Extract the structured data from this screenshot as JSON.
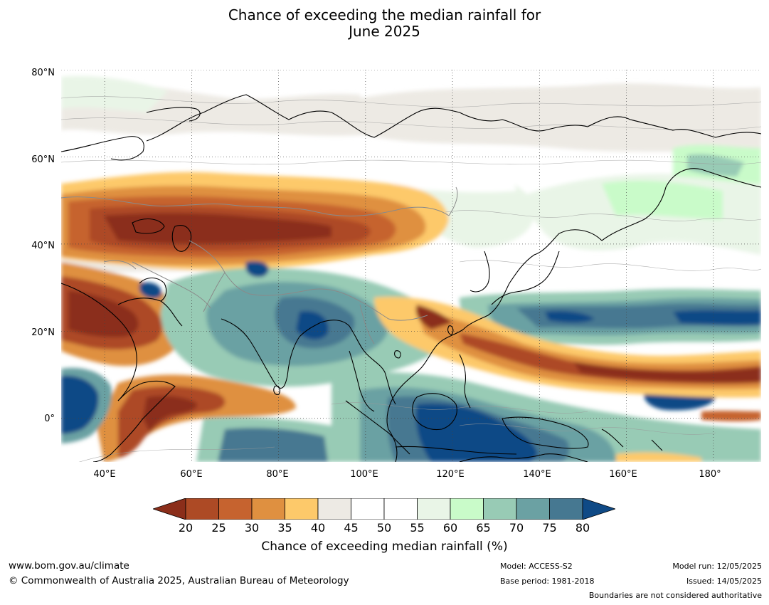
{
  "title": {
    "line1": "Chance of exceeding the median rainfall for",
    "line2": "June 2025"
  },
  "map": {
    "lat_labels": [
      "80°N",
      "60°N",
      "40°N",
      "20°N",
      "0°"
    ],
    "lat_values": [
      80,
      60,
      40,
      20,
      0
    ],
    "lon_labels": [
      "40°E",
      "60°E",
      "80°E",
      "100°E",
      "120°E",
      "140°E",
      "160°E",
      "180°"
    ],
    "lon_values": [
      40,
      60,
      80,
      100,
      120,
      140,
      160,
      180
    ],
    "extent": {
      "lon_min": 30,
      "lon_max": 191,
      "lat_min": -10,
      "lat_max": 80
    },
    "grid": "dotted",
    "background": "#ffffff"
  },
  "colorbar": {
    "ticks": [
      "20",
      "25",
      "30",
      "35",
      "40",
      "45",
      "50",
      "55",
      "60",
      "65",
      "70",
      "75",
      "80"
    ],
    "colors": [
      "#8b2e1a",
      "#ad4a25",
      "#c6632f",
      "#df9040",
      "#fdc96a",
      "#edeae4",
      "#ffffff",
      "#ffffff",
      "#e9f5e7",
      "#c9fbc9",
      "#98cbb5",
      "#6ba1a3",
      "#467891",
      "#0f4a86"
    ],
    "label": "Chance of exceeding median rainfall (%)"
  },
  "footer": {
    "website": "www.bom.gov.au/climate",
    "copyright": "© Commonwealth of Australia 2025, Australian Bureau of Meteorology",
    "model": "Model: ACCESS-S2",
    "base_period": "Base period: 1981-2018",
    "model_run": "Model run: 12/05/2025",
    "issued": "Issued: 14/05/2025",
    "disclaimer": "Boundaries are not considered authoritative"
  }
}
